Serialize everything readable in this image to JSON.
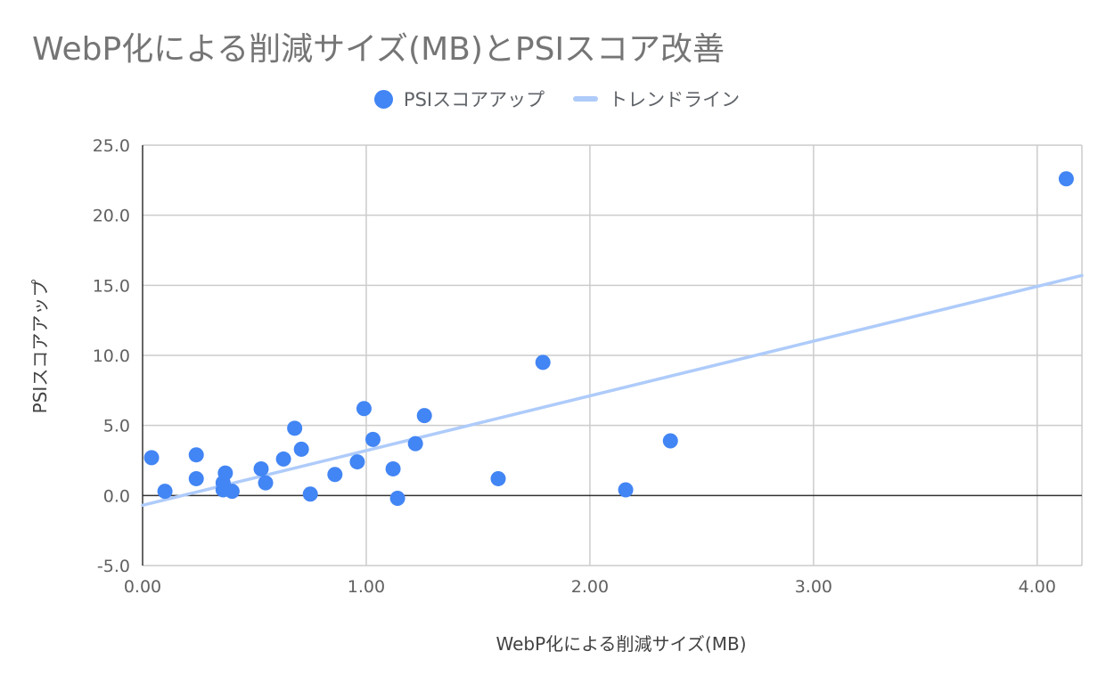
{
  "chart_data": {
    "type": "scatter",
    "title": "WebP化による削減サイズ(MB)とPSIスコア改善",
    "xlabel": "WebP化による削減サイズ(MB)",
    "ylabel": "PSIスコアアップ",
    "xlim": [
      0,
      4.2
    ],
    "ylim": [
      -5,
      25
    ],
    "x_ticks": [
      0,
      1,
      2,
      3,
      4
    ],
    "x_tick_labels": [
      "0.00",
      "1.00",
      "2.00",
      "3.00",
      "4.00"
    ],
    "y_ticks": [
      -5,
      0,
      5,
      10,
      15,
      20,
      25
    ],
    "y_tick_labels": [
      "-5.0",
      "0.0",
      "5.0",
      "10.0",
      "15.0",
      "20.0",
      "25.0"
    ],
    "grid": true,
    "legend_position": "top",
    "series": [
      {
        "name": "PSIスコアアップ",
        "color": "#4285f4",
        "points": [
          [
            0.04,
            2.7
          ],
          [
            0.1,
            0.3
          ],
          [
            0.24,
            2.9
          ],
          [
            0.24,
            1.2
          ],
          [
            0.36,
            0.9
          ],
          [
            0.37,
            1.6
          ],
          [
            0.36,
            0.4
          ],
          [
            0.4,
            0.3
          ],
          [
            0.53,
            1.9
          ],
          [
            0.55,
            0.9
          ],
          [
            0.63,
            2.6
          ],
          [
            0.68,
            4.8
          ],
          [
            0.71,
            3.3
          ],
          [
            0.75,
            0.1
          ],
          [
            0.86,
            1.5
          ],
          [
            0.96,
            2.4
          ],
          [
            0.99,
            6.2
          ],
          [
            1.03,
            4.0
          ],
          [
            1.12,
            1.9
          ],
          [
            1.14,
            -0.2
          ],
          [
            1.22,
            3.7
          ],
          [
            1.26,
            5.7
          ],
          [
            1.59,
            1.2
          ],
          [
            1.79,
            9.5
          ],
          [
            2.16,
            0.4
          ],
          [
            2.36,
            3.9
          ],
          [
            4.13,
            22.6
          ]
        ]
      },
      {
        "name": "トレンドライン",
        "type": "line",
        "color": "#aecbfa",
        "points": [
          [
            0,
            -0.7
          ],
          [
            4.2,
            15.7
          ]
        ]
      }
    ]
  }
}
